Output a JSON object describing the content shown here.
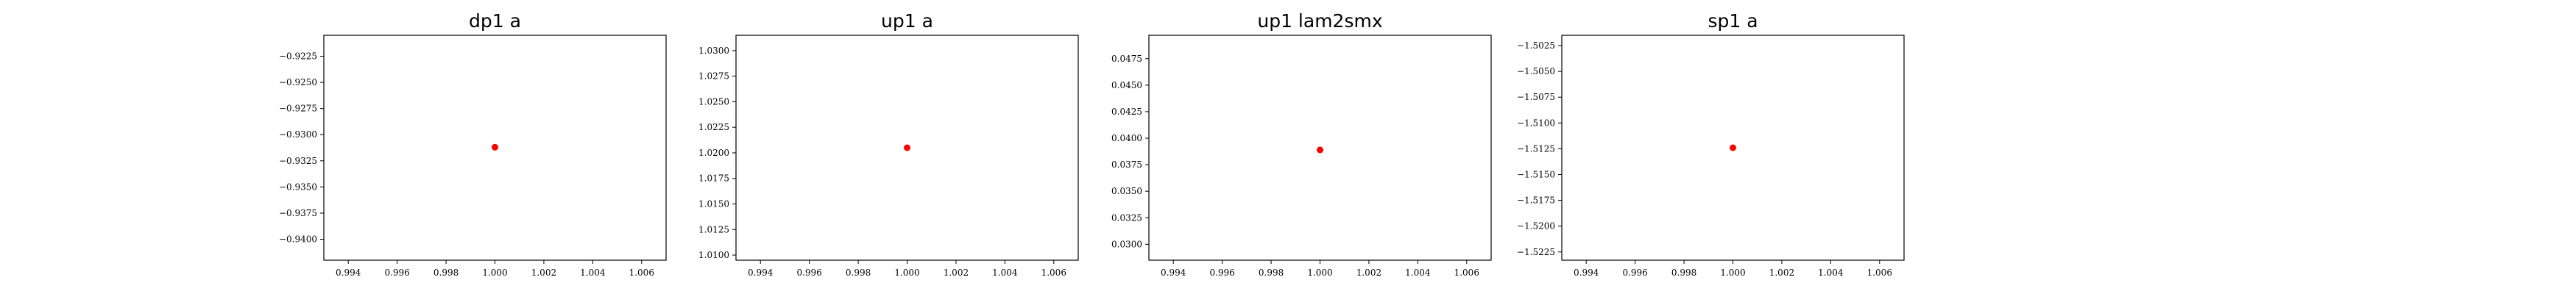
{
  "chart_data": [
    {
      "type": "scatter",
      "title": "dp1 a",
      "xlabel": "",
      "ylabel": "",
      "xlim": [
        0.993,
        1.007
      ],
      "ylim": [
        -0.942,
        -0.9205
      ],
      "xticks": [
        "0.994",
        "0.996",
        "0.998",
        "1.000",
        "1.002",
        "1.004",
        "1.006"
      ],
      "yticks": [
        "−0.9225",
        "−0.9250",
        "−0.9275",
        "−0.9300",
        "−0.9325",
        "−0.9350",
        "−0.9375",
        "−0.9400"
      ],
      "ytick_values": [
        -0.9225,
        -0.925,
        -0.9275,
        -0.93,
        -0.9325,
        -0.935,
        -0.9375,
        -0.94
      ],
      "points": [
        {
          "x": 1.0,
          "y": -0.9312
        }
      ],
      "marker_color": "#ff0000",
      "grid": false
    },
    {
      "type": "scatter",
      "title": "up1 a",
      "xlabel": "",
      "ylabel": "",
      "xlim": [
        0.993,
        1.007
      ],
      "ylim": [
        1.0095,
        1.0315
      ],
      "xticks": [
        "0.994",
        "0.996",
        "0.998",
        "1.000",
        "1.002",
        "1.004",
        "1.006"
      ],
      "yticks": [
        "1.0300",
        "1.0275",
        "1.0250",
        "1.0225",
        "1.0200",
        "1.0175",
        "1.0150",
        "1.0125",
        "1.0100"
      ],
      "ytick_values": [
        1.03,
        1.0275,
        1.025,
        1.0225,
        1.02,
        1.0175,
        1.015,
        1.0125,
        1.01
      ],
      "points": [
        {
          "x": 1.0,
          "y": 1.0205
        }
      ],
      "marker_color": "#ff0000",
      "grid": false
    },
    {
      "type": "scatter",
      "title": "up1 lam2smx",
      "xlabel": "",
      "ylabel": "",
      "xlim": [
        0.993,
        1.007
      ],
      "ylim": [
        0.0285,
        0.0497
      ],
      "xticks": [
        "0.994",
        "0.996",
        "0.998",
        "1.000",
        "1.002",
        "1.004",
        "1.006"
      ],
      "yticks": [
        "0.0475",
        "0.0450",
        "0.0425",
        "0.0400",
        "0.0375",
        "0.0350",
        "0.0325",
        "0.0300"
      ],
      "ytick_values": [
        0.0475,
        0.045,
        0.0425,
        0.04,
        0.0375,
        0.035,
        0.0325,
        0.03
      ],
      "points": [
        {
          "x": 1.0,
          "y": 0.0389
        }
      ],
      "marker_color": "#ff0000",
      "grid": false
    },
    {
      "type": "scatter",
      "title": "sp1 a",
      "xlabel": "",
      "ylabel": "",
      "xlim": [
        0.993,
        1.007
      ],
      "ylim": [
        -1.5233,
        -1.5015
      ],
      "xticks": [
        "0.994",
        "0.996",
        "0.998",
        "1.000",
        "1.002",
        "1.004",
        "1.006"
      ],
      "yticks": [
        "−1.5025",
        "−1.5050",
        "−1.5075",
        "−1.5100",
        "−1.5125",
        "−1.5150",
        "−1.5175",
        "−1.5200",
        "−1.5225"
      ],
      "ytick_values": [
        -1.5025,
        -1.505,
        -1.5075,
        -1.51,
        -1.5125,
        -1.515,
        -1.5175,
        -1.52,
        -1.5225
      ],
      "points": [
        {
          "x": 1.0,
          "y": -1.5124
        }
      ],
      "marker_color": "#ff0000",
      "grid": false
    }
  ]
}
